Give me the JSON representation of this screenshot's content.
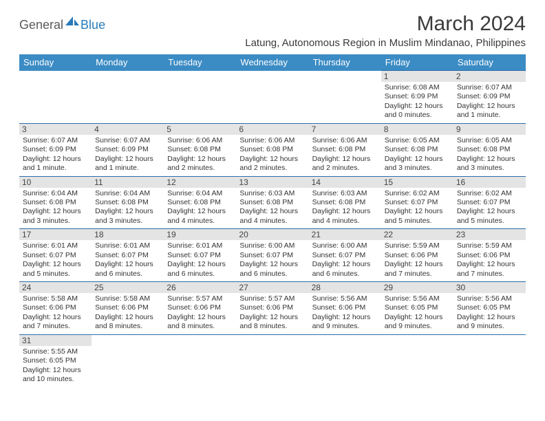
{
  "brand": {
    "part1": "General",
    "part2": "Blue"
  },
  "title": "March 2024",
  "subtitle": "Latung, Autonomous Region in Muslim Mindanao, Philippines",
  "colors": {
    "header_bg": "#3b8bc4",
    "header_text": "#ffffff",
    "rule": "#2a6da8",
    "daynum_bg": "#e4e4e4",
    "logo_blue": "#2a7ab8",
    "logo_gray": "#5a5a5a"
  },
  "weekdays": [
    "Sunday",
    "Monday",
    "Tuesday",
    "Wednesday",
    "Thursday",
    "Friday",
    "Saturday"
  ],
  "weeks": [
    [
      null,
      null,
      null,
      null,
      null,
      {
        "n": "1",
        "sr": "6:08 AM",
        "ss": "6:09 PM",
        "dl": "12 hours and 0 minutes."
      },
      {
        "n": "2",
        "sr": "6:07 AM",
        "ss": "6:09 PM",
        "dl": "12 hours and 1 minute."
      }
    ],
    [
      {
        "n": "3",
        "sr": "6:07 AM",
        "ss": "6:09 PM",
        "dl": "12 hours and 1 minute."
      },
      {
        "n": "4",
        "sr": "6:07 AM",
        "ss": "6:09 PM",
        "dl": "12 hours and 1 minute."
      },
      {
        "n": "5",
        "sr": "6:06 AM",
        "ss": "6:08 PM",
        "dl": "12 hours and 2 minutes."
      },
      {
        "n": "6",
        "sr": "6:06 AM",
        "ss": "6:08 PM",
        "dl": "12 hours and 2 minutes."
      },
      {
        "n": "7",
        "sr": "6:06 AM",
        "ss": "6:08 PM",
        "dl": "12 hours and 2 minutes."
      },
      {
        "n": "8",
        "sr": "6:05 AM",
        "ss": "6:08 PM",
        "dl": "12 hours and 3 minutes."
      },
      {
        "n": "9",
        "sr": "6:05 AM",
        "ss": "6:08 PM",
        "dl": "12 hours and 3 minutes."
      }
    ],
    [
      {
        "n": "10",
        "sr": "6:04 AM",
        "ss": "6:08 PM",
        "dl": "12 hours and 3 minutes."
      },
      {
        "n": "11",
        "sr": "6:04 AM",
        "ss": "6:08 PM",
        "dl": "12 hours and 3 minutes."
      },
      {
        "n": "12",
        "sr": "6:04 AM",
        "ss": "6:08 PM",
        "dl": "12 hours and 4 minutes."
      },
      {
        "n": "13",
        "sr": "6:03 AM",
        "ss": "6:08 PM",
        "dl": "12 hours and 4 minutes."
      },
      {
        "n": "14",
        "sr": "6:03 AM",
        "ss": "6:08 PM",
        "dl": "12 hours and 4 minutes."
      },
      {
        "n": "15",
        "sr": "6:02 AM",
        "ss": "6:07 PM",
        "dl": "12 hours and 5 minutes."
      },
      {
        "n": "16",
        "sr": "6:02 AM",
        "ss": "6:07 PM",
        "dl": "12 hours and 5 minutes."
      }
    ],
    [
      {
        "n": "17",
        "sr": "6:01 AM",
        "ss": "6:07 PM",
        "dl": "12 hours and 5 minutes."
      },
      {
        "n": "18",
        "sr": "6:01 AM",
        "ss": "6:07 PM",
        "dl": "12 hours and 6 minutes."
      },
      {
        "n": "19",
        "sr": "6:01 AM",
        "ss": "6:07 PM",
        "dl": "12 hours and 6 minutes."
      },
      {
        "n": "20",
        "sr": "6:00 AM",
        "ss": "6:07 PM",
        "dl": "12 hours and 6 minutes."
      },
      {
        "n": "21",
        "sr": "6:00 AM",
        "ss": "6:07 PM",
        "dl": "12 hours and 6 minutes."
      },
      {
        "n": "22",
        "sr": "5:59 AM",
        "ss": "6:06 PM",
        "dl": "12 hours and 7 minutes."
      },
      {
        "n": "23",
        "sr": "5:59 AM",
        "ss": "6:06 PM",
        "dl": "12 hours and 7 minutes."
      }
    ],
    [
      {
        "n": "24",
        "sr": "5:58 AM",
        "ss": "6:06 PM",
        "dl": "12 hours and 7 minutes."
      },
      {
        "n": "25",
        "sr": "5:58 AM",
        "ss": "6:06 PM",
        "dl": "12 hours and 8 minutes."
      },
      {
        "n": "26",
        "sr": "5:57 AM",
        "ss": "6:06 PM",
        "dl": "12 hours and 8 minutes."
      },
      {
        "n": "27",
        "sr": "5:57 AM",
        "ss": "6:06 PM",
        "dl": "12 hours and 8 minutes."
      },
      {
        "n": "28",
        "sr": "5:56 AM",
        "ss": "6:06 PM",
        "dl": "12 hours and 9 minutes."
      },
      {
        "n": "29",
        "sr": "5:56 AM",
        "ss": "6:05 PM",
        "dl": "12 hours and 9 minutes."
      },
      {
        "n": "30",
        "sr": "5:56 AM",
        "ss": "6:05 PM",
        "dl": "12 hours and 9 minutes."
      }
    ],
    [
      {
        "n": "31",
        "sr": "5:55 AM",
        "ss": "6:05 PM",
        "dl": "12 hours and 10 minutes."
      },
      null,
      null,
      null,
      null,
      null,
      null
    ]
  ],
  "labels": {
    "sunrise": "Sunrise:",
    "sunset": "Sunset:",
    "daylight": "Daylight:"
  },
  "fonts": {
    "title_pt": 30,
    "subtitle_pt": 15,
    "weekday_pt": 13,
    "daynum_pt": 12,
    "info_pt": 10.5
  }
}
